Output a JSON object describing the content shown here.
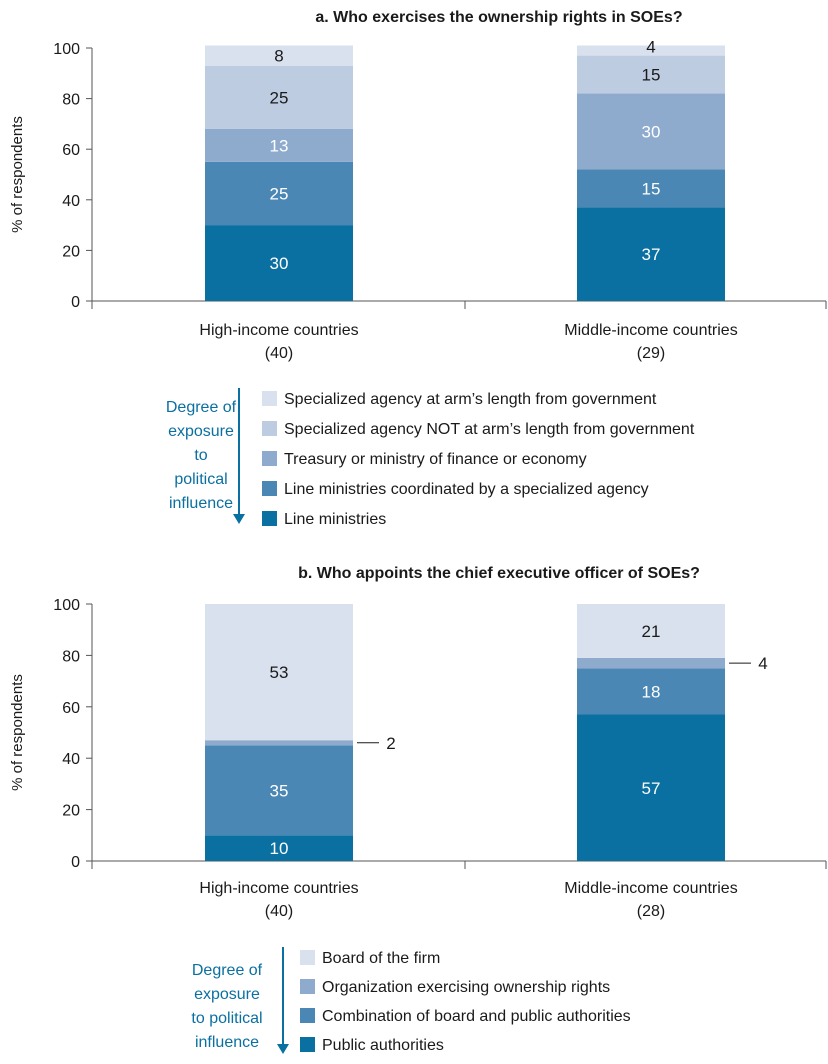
{
  "chart_data": [
    {
      "type": "bar",
      "stacked": true,
      "title": "a. Who exercises the ownership rights in SOEs?",
      "ylabel": "% of respondents",
      "ylim": [
        0,
        100
      ],
      "yticks": [
        "0",
        "20",
        "40",
        "60",
        "80",
        "100"
      ],
      "categories": [
        "High-income countries",
        "Middle-income countries"
      ],
      "category_counts": [
        "(40)",
        "(29)"
      ],
      "series": [
        {
          "name": "Line ministries",
          "color": "#0a6fa1",
          "label_color": "#ffffff",
          "values": [
            30,
            37
          ],
          "labels": [
            "30",
            "37"
          ]
        },
        {
          "name": "Line ministries coordinated by a specialized agency",
          "color": "#4a87b5",
          "label_color": "#ffffff",
          "values": [
            25,
            15
          ],
          "labels": [
            "25",
            "15"
          ]
        },
        {
          "name": "Treasury or ministry of finance or economy",
          "color": "#8eaacd",
          "label_color": "#ffffff",
          "values": [
            13,
            30
          ],
          "labels": [
            "13",
            "30"
          ]
        },
        {
          "name": "Specialized agency NOT at arm’s length from government",
          "color": "#bdcce0",
          "label_color": "#1a1a1a",
          "values": [
            25,
            15
          ],
          "labels": [
            "25",
            "15"
          ]
        },
        {
          "name": "Specialized agency at arm’s length from government",
          "color": "#d9e1ee",
          "label_color": "#1a1a1a",
          "values": [
            8,
            4
          ],
          "labels": [
            "8",
            "4"
          ]
        }
      ],
      "legend_caption": [
        "Degree of",
        "exposure",
        "to",
        "political",
        "influence"
      ],
      "legend_order_top_to_bottom": [
        4,
        3,
        2,
        1,
        0
      ]
    },
    {
      "type": "bar",
      "stacked": true,
      "title": "b. Who appoints the chief executive officer of SOEs?",
      "ylabel": "% of respondents",
      "ylim": [
        0,
        100
      ],
      "yticks": [
        "0",
        "20",
        "40",
        "60",
        "80",
        "100"
      ],
      "categories": [
        "High-income countries",
        "Middle-income countries"
      ],
      "category_counts": [
        "(40)",
        "(28)"
      ],
      "series": [
        {
          "name": "Public authorities",
          "color": "#0a6fa1",
          "label_color": "#ffffff",
          "values": [
            10,
            57
          ],
          "labels": [
            "10",
            "57"
          ]
        },
        {
          "name": "Combination of board and public authorities",
          "color": "#4a87b5",
          "label_color": "#ffffff",
          "values": [
            35,
            18
          ],
          "labels": [
            "35",
            "18"
          ]
        },
        {
          "name": "Organization exercising ownership rights",
          "color": "#8eaacd",
          "label_color": "#1a1a1a",
          "values": [
            2,
            4
          ],
          "labels": [
            "2",
            "4"
          ],
          "callout": true
        },
        {
          "name": "Board of the firm",
          "color": "#d9e1ee",
          "label_color": "#1a1a1a",
          "values": [
            53,
            21
          ],
          "labels": [
            "53",
            "21"
          ]
        }
      ],
      "legend_caption": [
        "Degree of",
        "exposure",
        "to political",
        "influence"
      ],
      "legend_order_top_to_bottom": [
        3,
        2,
        1,
        0
      ]
    }
  ],
  "colors": {
    "accent": "#0a6fa1",
    "axis": "#555555",
    "text": "#1a1a1a",
    "arrow": "#0a6fa1"
  }
}
